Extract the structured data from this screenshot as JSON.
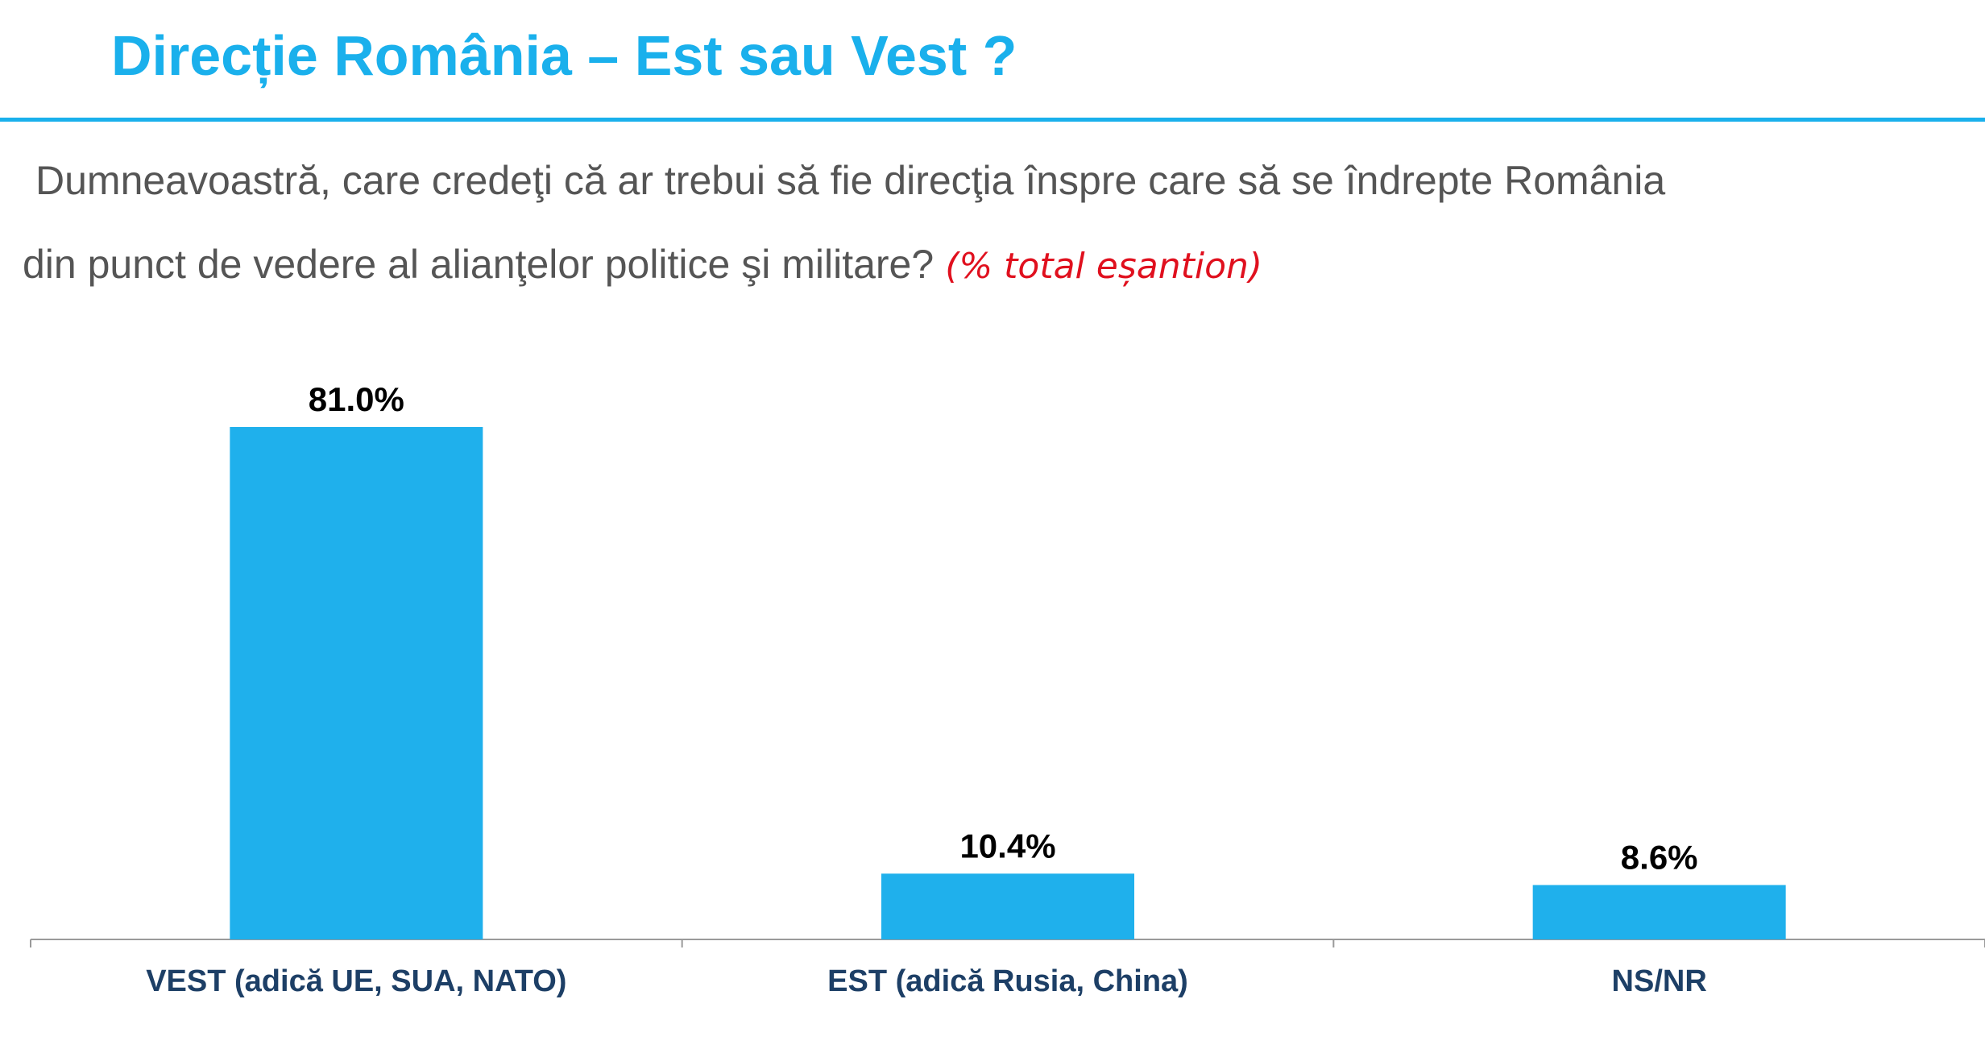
{
  "header": {
    "title": "Direcție România – Est sau Vest ?"
  },
  "question": {
    "line1": "Dumneavoastră, care credeţi că ar trebui să fie direcţia înspre care să se îndrepte România",
    "line2": "din punct de vedere al alianţelor politice şi militare?",
    "note": "(% total eșantion)"
  },
  "colors": {
    "accent": "#1ab0ec",
    "bar": "#1fb0ec",
    "note": "#e0101e",
    "category_label": "#1d3f66"
  },
  "chart_data": {
    "type": "bar",
    "categories": [
      "VEST (adică UE, SUA, NATO)",
      "EST (adică Rusia, China)",
      "NS/NR"
    ],
    "values": [
      81.0,
      10.4,
      8.6
    ],
    "value_labels": [
      "81.0%",
      "10.4%",
      "8.6%"
    ],
    "title": "",
    "xlabel": "",
    "ylabel": "",
    "ylim": [
      0,
      81.0
    ],
    "grid": false,
    "legend": "none"
  }
}
